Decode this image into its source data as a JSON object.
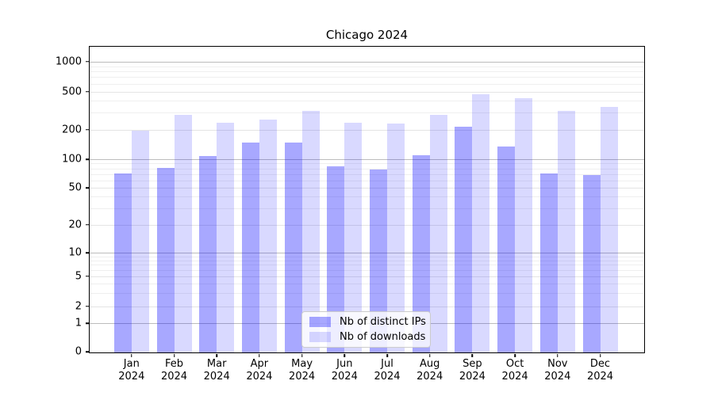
{
  "figure": {
    "title": "Chicago 2024"
  },
  "chart_data": {
    "type": "bar",
    "title": "Chicago 2024",
    "categories": [
      "Jan",
      "Feb",
      "Mar",
      "Apr",
      "May",
      "Jun",
      "Jul",
      "Aug",
      "Sep",
      "Oct",
      "Nov",
      "Dec"
    ],
    "category_year": "2024",
    "series": [
      {
        "name": "Nb of distinct IPs",
        "values": [
          72,
          83,
          110,
          150,
          150,
          85,
          80,
          112,
          220,
          137,
          72,
          70
        ]
      },
      {
        "name": "Nb of downloads",
        "values": [
          200,
          290,
          240,
          260,
          320,
          240,
          235,
          290,
          480,
          430,
          320,
          355
        ]
      }
    ],
    "yscale": "symlog",
    "yticks": [
      0,
      1,
      2,
      5,
      10,
      20,
      50,
      100,
      200,
      500,
      1000
    ],
    "ytick_labels": [
      "0",
      "1",
      "2",
      "5",
      "10",
      "20",
      "50",
      "100",
      "200",
      "500",
      "1000"
    ],
    "ylim": [
      0,
      1450
    ],
    "grid": true,
    "legend_position": "lower center",
    "colors": {
      "ips_bar": "rgba(0,0,255,0.34)",
      "downloads_bar": "rgba(0,0,255,0.15)",
      "ips_on_white": "#a8a8ff",
      "downloads_on_white": "#d9d9ff",
      "grid_major": "#bcbcbc",
      "grid_minor_labeled": "#e4e4e4",
      "grid_minor": "#efefef",
      "axis": "#000000"
    }
  },
  "legend": {
    "items": [
      {
        "label": "Nb of distinct IPs"
      },
      {
        "label": "Nb of downloads"
      }
    ]
  }
}
